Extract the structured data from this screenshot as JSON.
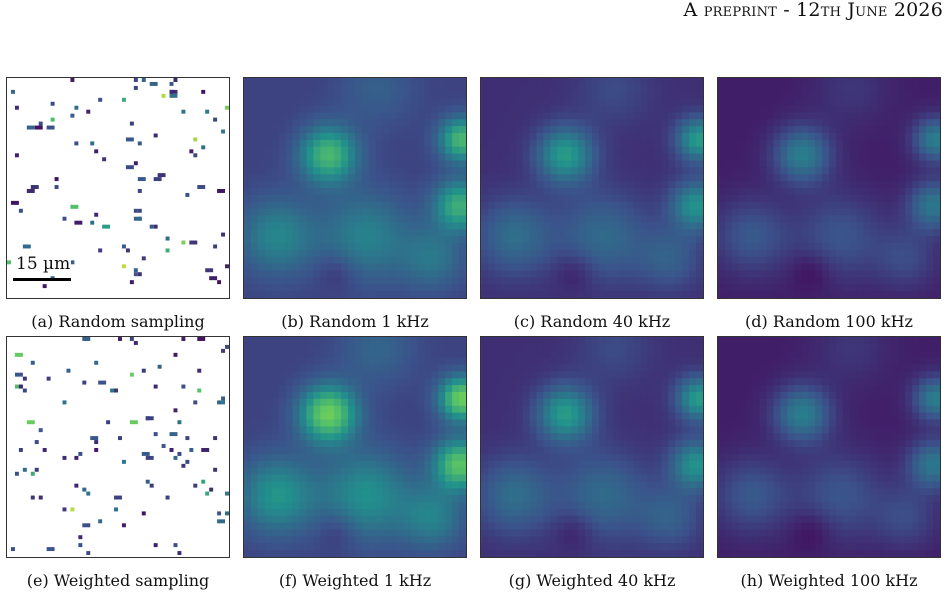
{
  "header": {
    "prefix": "A preprint - 12th June 2026"
  },
  "scalebar_label": "15 µm",
  "captions": [
    "(a) Random sampling",
    "(b) Random 1 kHz",
    "(c) Random 40 kHz",
    "(d) Random 100 kHz",
    "(e) Weighted sampling",
    "(f) Weighted 1 kHz",
    "(g) Weighted 40 kHz",
    "(h) Weighted 100 kHz"
  ],
  "colors": {
    "viridis_dark": "#3b1f5c",
    "viridis_blue": "#3b5a8f",
    "viridis_teal": "#2f8f8a",
    "viridis_green": "#2fb37a",
    "viridis_yellow": "#d9e021"
  }
}
